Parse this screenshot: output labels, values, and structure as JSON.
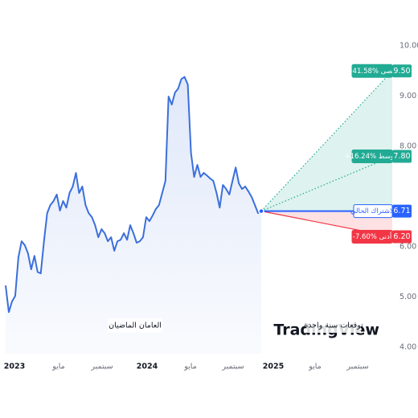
{
  "chart_data": {
    "type": "forecast",
    "watermark": "TradingView",
    "history_label": "العامان الماضيان",
    "forecast_label": "توقعات سنة واحدة",
    "x_labels": [
      "2023",
      "مايو",
      "سبتمبر",
      "2024",
      "مايو",
      "سبتمبر",
      "2025",
      "مايو",
      "سبتمبر"
    ],
    "ylim": [
      4,
      10
    ],
    "yticks": [
      {
        "value": 4,
        "label": "4.00"
      },
      {
        "value": 5,
        "label": "5.00"
      },
      {
        "value": 6,
        "label": "6.00"
      },
      {
        "value": 8,
        "label": "8.00"
      },
      {
        "value": 9,
        "label": "9.00"
      },
      {
        "value": 10,
        "label": "10.00"
      }
    ],
    "series": [
      {
        "color": "#3b6fdb",
        "values": [
          5.23,
          4.7,
          4.91,
          5.02,
          5.79,
          6.11,
          6.03,
          5.87,
          5.55,
          5.82,
          5.5,
          5.47,
          6.11,
          6.67,
          6.83,
          6.91,
          7.04,
          6.72,
          6.91,
          6.78,
          7.07,
          7.2,
          7.47,
          7.07,
          7.2,
          6.83,
          6.67,
          6.59,
          6.43,
          6.19,
          6.35,
          6.27,
          6.11,
          6.19,
          5.92,
          6.11,
          6.14,
          6.27,
          6.14,
          6.43,
          6.27,
          6.08,
          6.11,
          6.19,
          6.59,
          6.51,
          6.62,
          6.75,
          6.83,
          7.07,
          7.31,
          8.99,
          8.83,
          9.07,
          9.15,
          9.34,
          9.38,
          9.23,
          7.87,
          7.39,
          7.63,
          7.39,
          7.47,
          7.42,
          7.36,
          7.31,
          7.07,
          6.78,
          7.23,
          7.15,
          7.04,
          7.31,
          7.58,
          7.26,
          7.15,
          7.2,
          7.1,
          6.99,
          6.83,
          6.67,
          6.71
        ]
      }
    ],
    "forecast": {
      "high": {
        "label": "+41.58% أقصى",
        "value": 9.5,
        "value_label": "9.50",
        "color": "#22ab94"
      },
      "average": {
        "label": "+16.24% متوسط",
        "value": 7.8,
        "value_label": "7.80",
        "color": "#22ab94"
      },
      "current": {
        "label": "الاشتراك الحالي",
        "value": 6.71,
        "value_label": "6.71",
        "color": "#2962ff"
      },
      "low": {
        "label": "-7.60% أدنى",
        "value": 6.2,
        "value_label": "6.20",
        "color": "#f23645"
      }
    }
  }
}
